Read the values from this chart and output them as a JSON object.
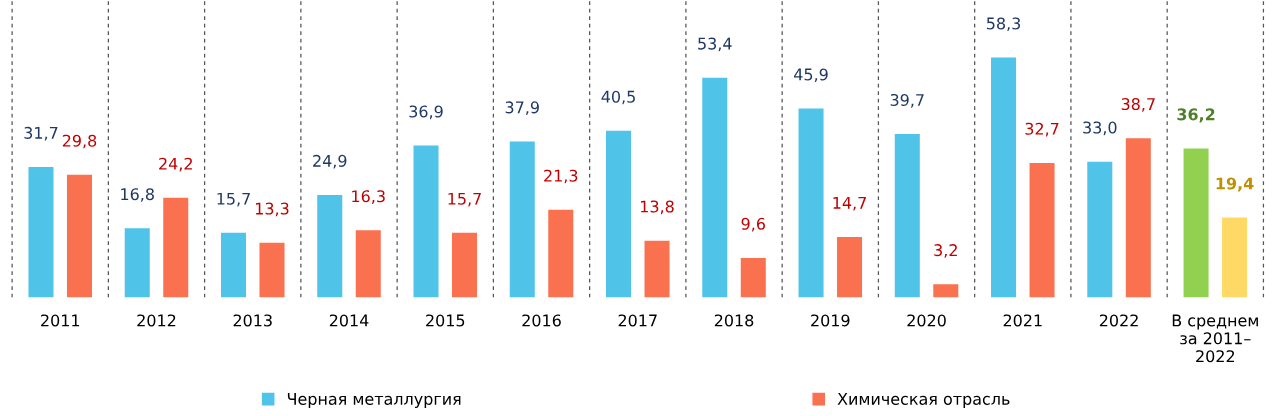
{
  "chart_data": {
    "type": "bar",
    "categories": [
      "2011",
      "2012",
      "2013",
      "2014",
      "2015",
      "2016",
      "2017",
      "2018",
      "2019",
      "2020",
      "2021",
      "2022",
      "В среднем\nза 2011–\n2022"
    ],
    "series": [
      {
        "name": "Черная металлургия",
        "color": "#4fc3e8",
        "colors": [
          "#4fc3e8",
          "#4fc3e8",
          "#4fc3e8",
          "#4fc3e8",
          "#4fc3e8",
          "#4fc3e8",
          "#4fc3e8",
          "#4fc3e8",
          "#4fc3e8",
          "#4fc3e8",
          "#4fc3e8",
          "#4fc3e8",
          "#92d050"
        ],
        "values": [
          31.7,
          16.8,
          15.7,
          24.9,
          36.9,
          37.9,
          40.5,
          53.4,
          45.9,
          39.7,
          58.3,
          33.0,
          36.2
        ],
        "value_labels": [
          "31,7",
          "16,8",
          "15,7",
          "24,9",
          "36,9",
          "37,9",
          "40,5",
          "53,4",
          "45,9",
          "39,7",
          "58,3",
          "33,0",
          "36,2"
        ]
      },
      {
        "name": "Химическая отрасль",
        "color": "#fa7150",
        "colors": [
          "#fa7150",
          "#fa7150",
          "#fa7150",
          "#fa7150",
          "#fa7150",
          "#fa7150",
          "#fa7150",
          "#fa7150",
          "#fa7150",
          "#fa7150",
          "#fa7150",
          "#fa7150",
          "#ffd966"
        ],
        "values": [
          29.8,
          24.2,
          13.3,
          16.3,
          15.7,
          21.3,
          13.8,
          9.6,
          14.7,
          3.2,
          32.7,
          38.7,
          19.4
        ],
        "value_labels": [
          "29,8",
          "24,2",
          "13,3",
          "16,3",
          "15,7",
          "21,3",
          "13,8",
          "9,6",
          "14,7",
          "3,2",
          "32,7",
          "38,7",
          "19,4"
        ]
      }
    ],
    "grid": "x",
    "legend": "bottom",
    "tick_labels": "x"
  }
}
